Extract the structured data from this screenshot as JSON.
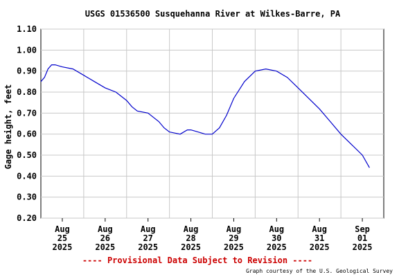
{
  "chart_data": {
    "type": "line",
    "title": "USGS 01536500 Susquehanna River at Wilkes-Barre, PA",
    "ylabel": "Gage height, feet",
    "xlabel": "",
    "ylim": [
      0.2,
      1.1
    ],
    "yticks": [
      "1.10",
      "1.00",
      "0.90",
      "0.80",
      "0.70",
      "0.60",
      "0.50",
      "0.40",
      "0.30",
      "0.20"
    ],
    "xticks": [
      {
        "month": "Aug",
        "day": "25",
        "year": "2025"
      },
      {
        "month": "Aug",
        "day": "26",
        "year": "2025"
      },
      {
        "month": "Aug",
        "day": "27",
        "year": "2025"
      },
      {
        "month": "Aug",
        "day": "28",
        "year": "2025"
      },
      {
        "month": "Aug",
        "day": "29",
        "year": "2025"
      },
      {
        "month": "Aug",
        "day": "30",
        "year": "2025"
      },
      {
        "month": "Aug",
        "day": "31",
        "year": "2025"
      },
      {
        "month": "Sep",
        "day": "01",
        "year": "2025"
      }
    ],
    "xrange": [
      "2025-08-24 12:00",
      "2025-09-01 12:00"
    ],
    "grid": true,
    "line_color": "#0000cc",
    "provisional_note": "---- Provisional Data Subject to Revision ----",
    "provisional_color": "#cc0000",
    "credit": "Graph courtesy of the U.S. Geological Survey",
    "series": [
      {
        "x": [
          "2025-08-24 12:00",
          "2025-08-24 14:00",
          "2025-08-24 16:00",
          "2025-08-24 18:00",
          "2025-08-24 20:00",
          "2025-08-25 00:00",
          "2025-08-25 06:00",
          "2025-08-25 12:00",
          "2025-08-25 18:00",
          "2025-08-26 00:00",
          "2025-08-26 06:00",
          "2025-08-26 12:00",
          "2025-08-26 15:00",
          "2025-08-26 18:00",
          "2025-08-27 00:00",
          "2025-08-27 06:00",
          "2025-08-27 09:00",
          "2025-08-27 12:00",
          "2025-08-27 18:00",
          "2025-08-27 22:00",
          "2025-08-28 00:00",
          "2025-08-28 04:00",
          "2025-08-28 08:00",
          "2025-08-28 12:00",
          "2025-08-28 16:00",
          "2025-08-28 20:00",
          "2025-08-29 00:00",
          "2025-08-29 06:00",
          "2025-08-29 12:00",
          "2025-08-29 18:00",
          "2025-08-30 00:00",
          "2025-08-30 06:00",
          "2025-08-30 12:00",
          "2025-08-30 18:00",
          "2025-08-31 00:00",
          "2025-08-31 06:00",
          "2025-08-31 12:00",
          "2025-08-31 18:00",
          "2025-09-01 00:00",
          "2025-09-01 04:00"
        ],
        "y": [
          0.85,
          0.87,
          0.91,
          0.93,
          0.93,
          0.92,
          0.91,
          0.88,
          0.85,
          0.82,
          0.8,
          0.76,
          0.73,
          0.71,
          0.7,
          0.66,
          0.63,
          0.61,
          0.6,
          0.62,
          0.62,
          0.61,
          0.6,
          0.6,
          0.63,
          0.69,
          0.77,
          0.85,
          0.9,
          0.91,
          0.9,
          0.87,
          0.82,
          0.77,
          0.72,
          0.66,
          0.6,
          0.55,
          0.5,
          0.44
        ]
      }
    ]
  }
}
